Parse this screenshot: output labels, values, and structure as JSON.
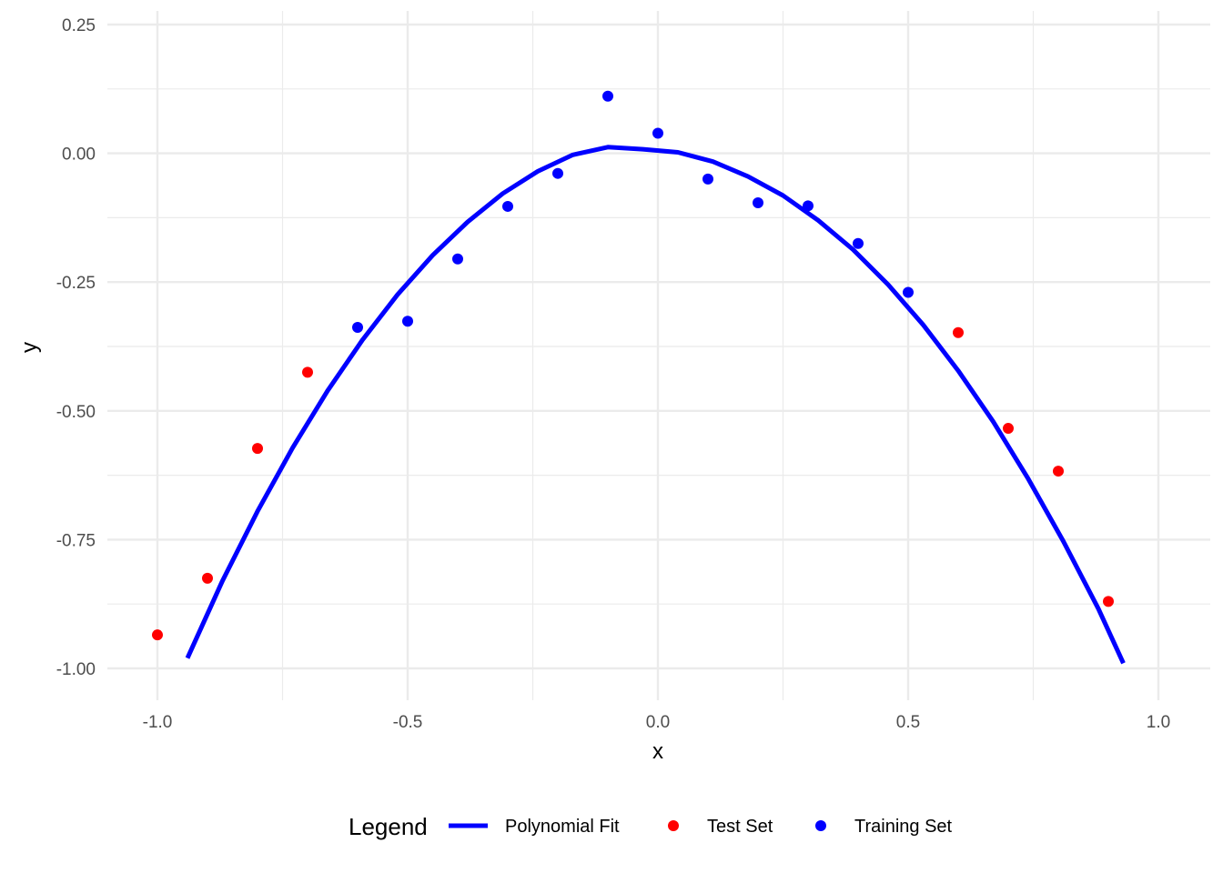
{
  "chart_data": {
    "type": "scatter",
    "xlabel": "x",
    "ylabel": "y",
    "xlim": [
      -1.1,
      1.1
    ],
    "ylim": [
      -1.05,
      0.27
    ],
    "x_ticks": [
      -1.0,
      -0.5,
      0.0,
      0.5,
      1.0
    ],
    "x_tick_labels": [
      "-1.0",
      "-0.5",
      "0.0",
      "0.5",
      "1.0"
    ],
    "x_minor_ticks": [
      -0.75,
      -0.25,
      0.25,
      0.75
    ],
    "y_ticks": [
      -1.0,
      -0.75,
      -0.5,
      -0.25,
      0.0,
      0.25
    ],
    "y_tick_labels": [
      "-1.00",
      "-0.75",
      "-0.50",
      "-0.25",
      "0.00",
      "0.25"
    ],
    "y_minor_ticks": [
      -0.875,
      -0.625,
      -0.375,
      -0.125,
      0.125
    ],
    "grid": true,
    "legend_position": "bottom",
    "legend": {
      "title": "Legend",
      "entries": [
        {
          "label": "Polynomial Fit",
          "kind": "line",
          "color": "#0000ff"
        },
        {
          "label": "Test Set",
          "kind": "point",
          "color": "#ff0000"
        },
        {
          "label": "Training Set",
          "kind": "point",
          "color": "#0000ff"
        }
      ]
    },
    "series": [
      {
        "name": "Test Set",
        "kind": "point",
        "color": "#ff0000",
        "x": [
          -1.0,
          -0.9,
          -0.8,
          -0.7,
          0.6,
          0.7,
          0.8,
          0.9
        ],
        "y": [
          -0.935,
          -0.825,
          -0.573,
          -0.425,
          -0.348,
          -0.534,
          -0.617,
          -0.87
        ]
      },
      {
        "name": "Training Set",
        "kind": "point",
        "color": "#0000ff",
        "x": [
          -0.6,
          -0.5,
          -0.4,
          -0.3,
          -0.2,
          -0.1,
          0.0,
          0.1,
          0.2,
          0.3,
          0.4,
          0.5
        ],
        "y": [
          -0.338,
          -0.326,
          -0.205,
          -0.103,
          -0.039,
          0.111,
          0.039,
          -0.05,
          -0.096,
          -0.102,
          -0.175,
          -0.27
        ]
      },
      {
        "name": "Polynomial Fit",
        "kind": "line",
        "color": "#0000ff",
        "x": [
          -0.94,
          -0.87,
          -0.8,
          -0.73,
          -0.66,
          -0.59,
          -0.52,
          -0.45,
          -0.38,
          -0.31,
          -0.24,
          -0.17,
          -0.1,
          -0.03,
          0.04,
          0.11,
          0.18,
          0.25,
          0.32,
          0.39,
          0.46,
          0.53,
          0.6,
          0.67,
          0.74,
          0.81,
          0.88,
          0.93
        ],
        "y": [
          -0.98,
          -0.83,
          -0.695,
          -0.572,
          -0.461,
          -0.362,
          -0.274,
          -0.198,
          -0.133,
          -0.078,
          -0.035,
          -0.003,
          0.012,
          0.008,
          0.002,
          -0.016,
          -0.045,
          -0.082,
          -0.13,
          -0.187,
          -0.255,
          -0.333,
          -0.422,
          -0.521,
          -0.632,
          -0.753,
          -0.884,
          -0.99
        ]
      }
    ]
  }
}
